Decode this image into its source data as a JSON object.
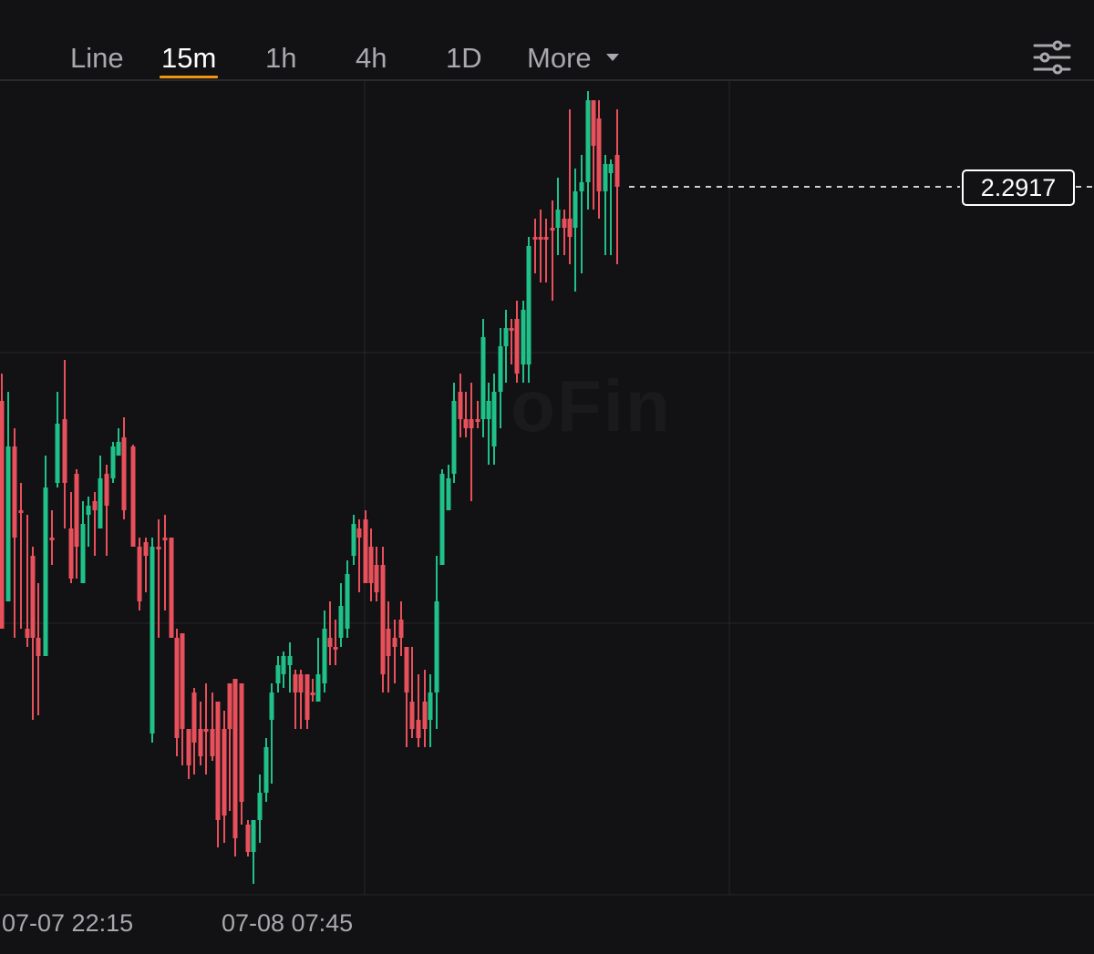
{
  "toolbar": {
    "tabs": [
      {
        "label": "Line"
      },
      {
        "label": "15m"
      },
      {
        "label": "1h"
      },
      {
        "label": "4h"
      },
      {
        "label": "1D"
      },
      {
        "label": "More"
      }
    ],
    "active_tab": "15m",
    "settings_icon": "sliders-icon"
  },
  "chart": {
    "current_price": "2.2917",
    "watermark": "oFin",
    "up_color": "#1fc189",
    "down_color": "#e8505b",
    "x_labels": [
      "07-07 22:15",
      "07-08 07:45"
    ]
  }
}
